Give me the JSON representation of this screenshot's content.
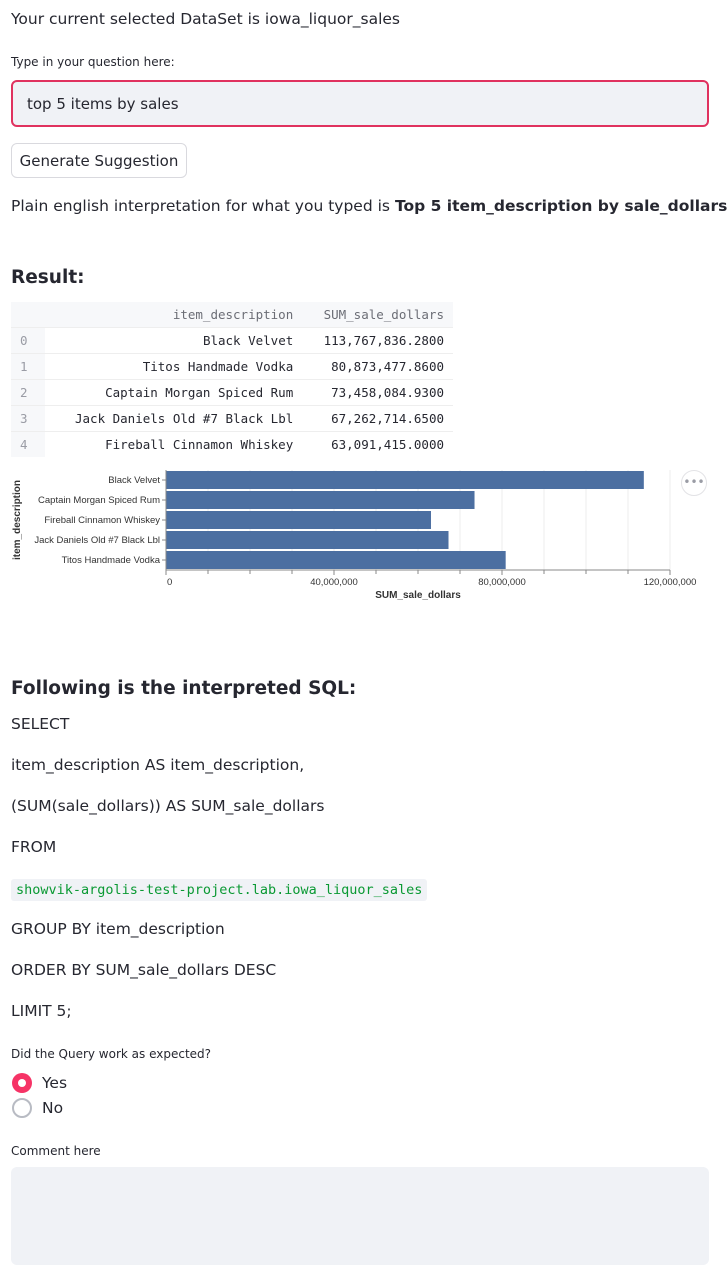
{
  "dataset_line": "Your current selected DataSet is iowa_liquor_sales",
  "question": {
    "label": "Type in your question here:",
    "value": "top 5 items by sales"
  },
  "generate_button_label": "Generate Suggestion",
  "interpretation": {
    "prefix": "Plain english interpretation for what you typed is",
    "bold": "Top 5 item_description by sale_dollars"
  },
  "result_heading": "Result:",
  "table": {
    "columns": [
      "item_description",
      "SUM_sale_dollars"
    ],
    "rows": [
      {
        "index": "0",
        "item": "Black Velvet",
        "sum": "113,767,836.2800"
      },
      {
        "index": "1",
        "item": "Titos Handmade Vodka",
        "sum": "80,873,477.8600"
      },
      {
        "index": "2",
        "item": "Captain Morgan Spiced Rum",
        "sum": "73,458,084.9300"
      },
      {
        "index": "3",
        "item": "Jack Daniels Old #7 Black Lbl",
        "sum": "67,262,714.6500"
      },
      {
        "index": "4",
        "item": "Fireball Cinnamon Whiskey",
        "sum": "63,091,415.0000"
      }
    ]
  },
  "chart_data": {
    "type": "bar",
    "orientation": "horizontal",
    "categories": [
      "Black Velvet",
      "Captain Morgan Spiced Rum",
      "Fireball Cinnamon Whiskey",
      "Jack Daniels Old #7 Black Lbl",
      "Titos Handmade Vodka"
    ],
    "values": [
      113767836.28,
      73458084.93,
      63091415.0,
      67262714.65,
      80873477.86
    ],
    "xlabel": "SUM_sale_dollars",
    "ylabel": "item_description",
    "xlim": [
      0,
      120000000
    ],
    "tick_labels": [
      "0",
      "40,000,000",
      "80,000,000",
      "120,000,000"
    ],
    "tick_values": [
      0,
      40000000,
      80000000,
      120000000
    ],
    "minor_tick_step": 10000000,
    "grid": true,
    "bar_color": "#4c6fa1"
  },
  "chart_menu_icon": "ellipsis-icon",
  "sql": {
    "heading": "Following is the interpreted SQL:",
    "select": "SELECT",
    "line1": "item_description AS item_description,",
    "line2": "(SUM(sale_dollars)) AS SUM_sale_dollars",
    "from": "FROM",
    "table_ref": "showvik-argolis-test-project.lab.iowa_liquor_sales",
    "group_by": "GROUP BY item_description",
    "order_by": "ORDER BY SUM_sale_dollars DESC",
    "limit": "LIMIT 5;"
  },
  "feedback": {
    "question": "Did the Query work as expected?",
    "options": [
      "Yes",
      "No"
    ],
    "selected": "Yes",
    "comment_label": "Comment here",
    "comment_value": ""
  },
  "colors": {
    "accent": "#f63366",
    "input_border_focus": "#e0325f",
    "code_green": "#0a9933",
    "bar": "#4c6fa1"
  }
}
